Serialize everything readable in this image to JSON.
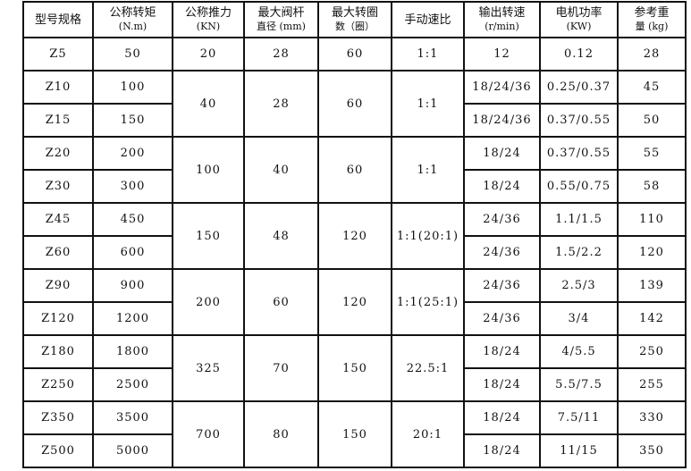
{
  "headers": [
    {
      "line1": "型号规格",
      "line2": ""
    },
    {
      "line1": "公称转矩",
      "line2": "(N.m)"
    },
    {
      "line1": "公称推力",
      "line2": "(KN)"
    },
    {
      "line1": "最大阀杆",
      "line2": "直径 (mm)"
    },
    {
      "line1": "最大转圈",
      "line2": "数（圈）"
    },
    {
      "line1": "手动速比",
      "line2": ""
    },
    {
      "line1": "输出转速",
      "line2": "(r/min)"
    },
    {
      "line1": "电机功率",
      "line2": "(KW)"
    },
    {
      "line1": "参考重",
      "line2": "量 (kg)"
    }
  ],
  "groups": [
    {
      "thrust": "20",
      "stem": "28",
      "turns": "60",
      "ratio": "1:1",
      "models": [
        {
          "model": "Z5",
          "torque": "50",
          "speed": "12",
          "power": "0.12",
          "weight": "28"
        }
      ]
    },
    {
      "thrust": "40",
      "stem": "28",
      "turns": "60",
      "ratio": "1:1",
      "models": [
        {
          "model": "Z10",
          "torque": "100",
          "speed": "18/24/36",
          "power": "0.25/0.37",
          "weight": "45"
        },
        {
          "model": "Z15",
          "torque": "150",
          "speed": "18/24/36",
          "power": "0.37/0.55",
          "weight": "50"
        }
      ]
    },
    {
      "thrust": "100",
      "stem": "40",
      "turns": "60",
      "ratio": "1:1",
      "models": [
        {
          "model": "Z20",
          "torque": "200",
          "speed": "18/24",
          "power": "0.37/0.55",
          "weight": "55"
        },
        {
          "model": "Z30",
          "torque": "300",
          "speed": "18/24",
          "power": "0.55/0.75",
          "weight": "58"
        }
      ]
    },
    {
      "thrust": "150",
      "stem": "48",
      "turns": "120",
      "ratio": "1:1(20:1)",
      "models": [
        {
          "model": "Z45",
          "torque": "450",
          "speed": "24/36",
          "power": "1.1/1.5",
          "weight": "110"
        },
        {
          "model": "Z60",
          "torque": "600",
          "speed": "24/36",
          "power": "1.5/2.2",
          "weight": "120"
        }
      ]
    },
    {
      "thrust": "200",
      "stem": "60",
      "turns": "120",
      "ratio": "1:1(25:1)",
      "models": [
        {
          "model": "Z90",
          "torque": "900",
          "speed": "24/36",
          "power": "2.5/3",
          "weight": "139"
        },
        {
          "model": "Z120",
          "torque": "1200",
          "speed": "24/36",
          "power": "3/4",
          "weight": "142"
        }
      ]
    },
    {
      "thrust": "325",
      "stem": "70",
      "turns": "150",
      "ratio": "22.5:1",
      "models": [
        {
          "model": "Z180",
          "torque": "1800",
          "speed": "18/24",
          "power": "4/5.5",
          "weight": "250"
        },
        {
          "model": "Z250",
          "torque": "2500",
          "speed": "18/24",
          "power": "5.5/7.5",
          "weight": "255"
        }
      ]
    },
    {
      "thrust": "700",
      "stem": "80",
      "turns": "150",
      "ratio": "20:1",
      "models": [
        {
          "model": "Z350",
          "torque": "3500",
          "speed": "18/24",
          "power": "7.5/11",
          "weight": "330"
        },
        {
          "model": "Z500",
          "torque": "5000",
          "speed": "18/24",
          "power": "11/15",
          "weight": "350"
        }
      ]
    }
  ]
}
